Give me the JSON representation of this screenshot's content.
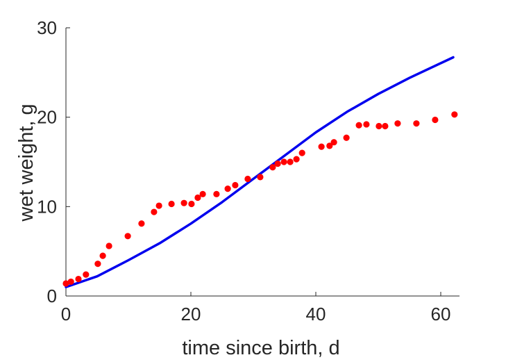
{
  "chart_data": {
    "type": "scatter",
    "title": "",
    "xlabel": "time since birth, d",
    "ylabel": "wet weight, g",
    "xlim": [
      0,
      63
    ],
    "ylim": [
      0,
      30
    ],
    "xticks": [
      0,
      20,
      40,
      60
    ],
    "yticks": [
      0,
      10,
      20,
      30
    ],
    "grid": false,
    "legend": "none",
    "series": [
      {
        "kind": "points",
        "color": "#ff0000",
        "x": [
          0,
          0.8,
          2,
          3.2,
          5.1,
          5.9,
          6.9,
          9.9,
          12.1,
          14.1,
          14.9,
          16.9,
          18.9,
          20.1,
          21.1,
          21.9,
          24.1,
          25.9,
          27.1,
          29.1,
          31.1,
          33.1,
          33.9,
          34.9,
          35.9,
          36.9,
          37.8,
          40.9,
          42.2,
          42.9,
          44.9,
          46.9,
          48.1,
          50.1,
          51.1,
          53.1,
          56.1,
          59.1,
          62.2
        ],
        "y": [
          1.4,
          1.6,
          1.9,
          2.4,
          3.6,
          4.5,
          5.6,
          6.7,
          8.1,
          9.4,
          10.1,
          10.3,
          10.4,
          10.3,
          11.0,
          11.4,
          11.4,
          12.0,
          12.4,
          13.1,
          13.3,
          14.4,
          14.8,
          15.0,
          15.0,
          15.3,
          16.0,
          16.7,
          16.8,
          17.2,
          17.7,
          19.1,
          19.2,
          19.0,
          19.0,
          19.3,
          19.3,
          19.7,
          20.3
        ]
      },
      {
        "kind": "line",
        "color": "#0000ee",
        "x": [
          0,
          5,
          10,
          15,
          20,
          25,
          30,
          35,
          40,
          45,
          50,
          55,
          62
        ],
        "y": [
          1.0,
          2.2,
          4.0,
          5.9,
          8.1,
          10.5,
          13.1,
          15.7,
          18.3,
          20.6,
          22.6,
          24.4,
          26.7
        ]
      }
    ]
  }
}
